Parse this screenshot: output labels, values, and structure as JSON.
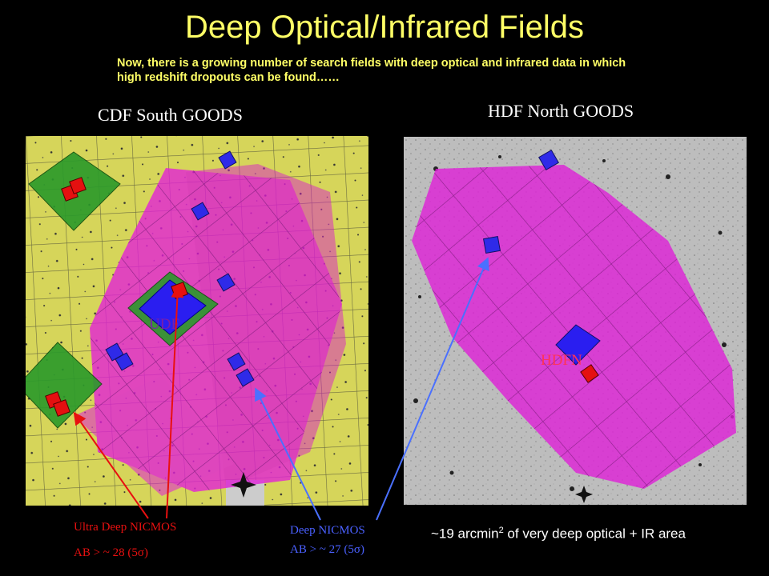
{
  "slide": {
    "title": "Deep Optical/Infrared Fields",
    "subtitle": "Now, there is a growing number of search fields with deep optical and infrared data in which high redshift dropouts can be found……"
  },
  "left_panel": {
    "title": "CDF South GOODS",
    "label": "UDF"
  },
  "right_panel": {
    "title": "HDF North GOODS",
    "label": "HDFN"
  },
  "annotations": {
    "ultra_deep_line1": "Ultra Deep NICMOS",
    "ultra_deep_line2": "AB > ~ 28 (5σ)",
    "deep_line1": "Deep NICMOS",
    "deep_line2": "AB > ~ 27 (5σ)",
    "area_prefix": "~19 arcmin",
    "area_sup": "2",
    "area_suffix": " of very deep optical + IR area"
  },
  "colors": {
    "title": "#ffff66",
    "background": "#000000",
    "optical_tiles": "#d8d85a",
    "acs_mosaic": "#e020d8",
    "nicmos_deep": "#3322ee",
    "nicmos_ultra": "#e81010",
    "green_field": "#2a9a2a",
    "red_arrow": "#e81010",
    "blue_arrow": "#4a70ff"
  }
}
